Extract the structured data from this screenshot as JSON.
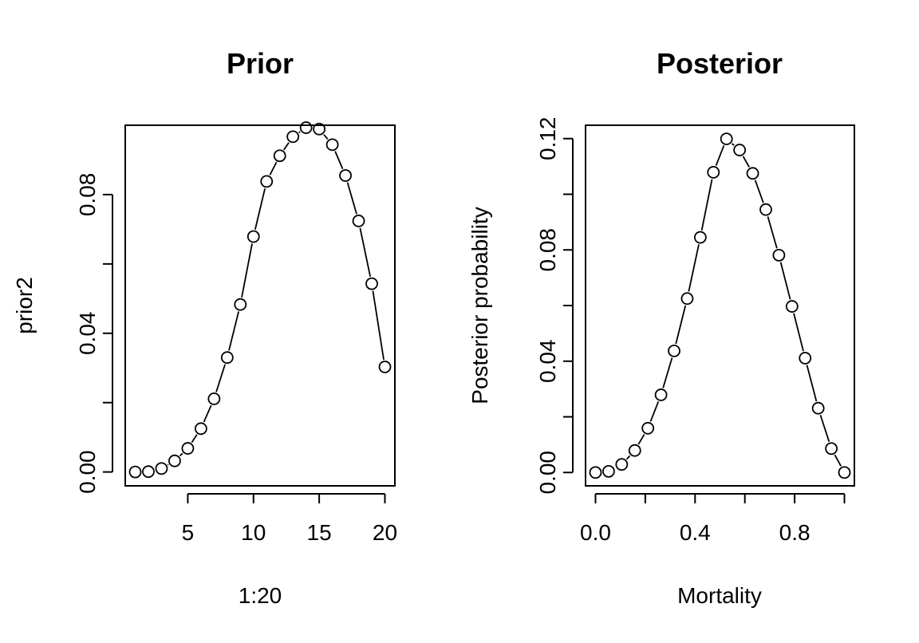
{
  "chart_data": [
    {
      "type": "line",
      "markers": "open-circle",
      "line_style": "broken segments between points (R type='b')",
      "title": "Prior",
      "xlabel": "1:20",
      "ylabel": "prior2",
      "xlim": [
        0.24,
        20.76
      ],
      "ylim": [
        -0.004,
        0.1
      ],
      "xticks": [
        5,
        10,
        15,
        20
      ],
      "xtick_labels": [
        "5",
        "10",
        "15",
        "20"
      ],
      "yticks": [
        0,
        0.02,
        0.04,
        0.06,
        0.08
      ],
      "ytick_labels": [
        "0.00",
        "",
        "0.04",
        "",
        "0.08"
      ],
      "grid": false,
      "series": [
        {
          "x": [
            1,
            2,
            3,
            4,
            5,
            6,
            7,
            8,
            9,
            10,
            11,
            12,
            13,
            14,
            15,
            16,
            17,
            18,
            19,
            20
          ],
          "values": [
            0.0,
            0.0001,
            0.001,
            0.0032,
            0.0068,
            0.0125,
            0.0211,
            0.033,
            0.0483,
            0.0679,
            0.0838,
            0.0912,
            0.0967,
            0.0993,
            0.0989,
            0.0944,
            0.0855,
            0.0724,
            0.0543,
            0.0303
          ]
        }
      ]
    },
    {
      "type": "line",
      "markers": "open-circle",
      "line_style": "broken segments between points (R type='b')",
      "title": "Posterior",
      "xlabel": "Mortality",
      "ylabel": "Posterior probability",
      "xlim": [
        -0.04,
        1.04
      ],
      "ylim": [
        -0.0048,
        0.1248
      ],
      "xticks": [
        0,
        0.2,
        0.4,
        0.6,
        0.8,
        1.0
      ],
      "xtick_labels": [
        "0.0",
        "",
        "0.4",
        "",
        "0.8",
        ""
      ],
      "yticks": [
        0,
        0.02,
        0.04,
        0.06,
        0.08,
        0.1,
        0.12
      ],
      "ytick_labels": [
        "0.00",
        "",
        "0.04",
        "",
        "0.08",
        "",
        "0.12"
      ],
      "grid": false,
      "series": [
        {
          "x": [
            0.0,
            0.0526,
            0.1053,
            0.1579,
            0.2105,
            0.2632,
            0.3158,
            0.3684,
            0.4211,
            0.4737,
            0.5263,
            0.5789,
            0.6316,
            0.6842,
            0.7368,
            0.7895,
            0.8421,
            0.8947,
            0.9474,
            1.0
          ],
          "values": [
            0.0,
            0.0004,
            0.0029,
            0.0079,
            0.0159,
            0.0279,
            0.0437,
            0.0625,
            0.0845,
            0.1079,
            0.1199,
            0.1159,
            0.1075,
            0.0945,
            0.0781,
            0.0597,
            0.0411,
            0.0231,
            0.0086,
            0.0
          ]
        }
      ]
    }
  ]
}
